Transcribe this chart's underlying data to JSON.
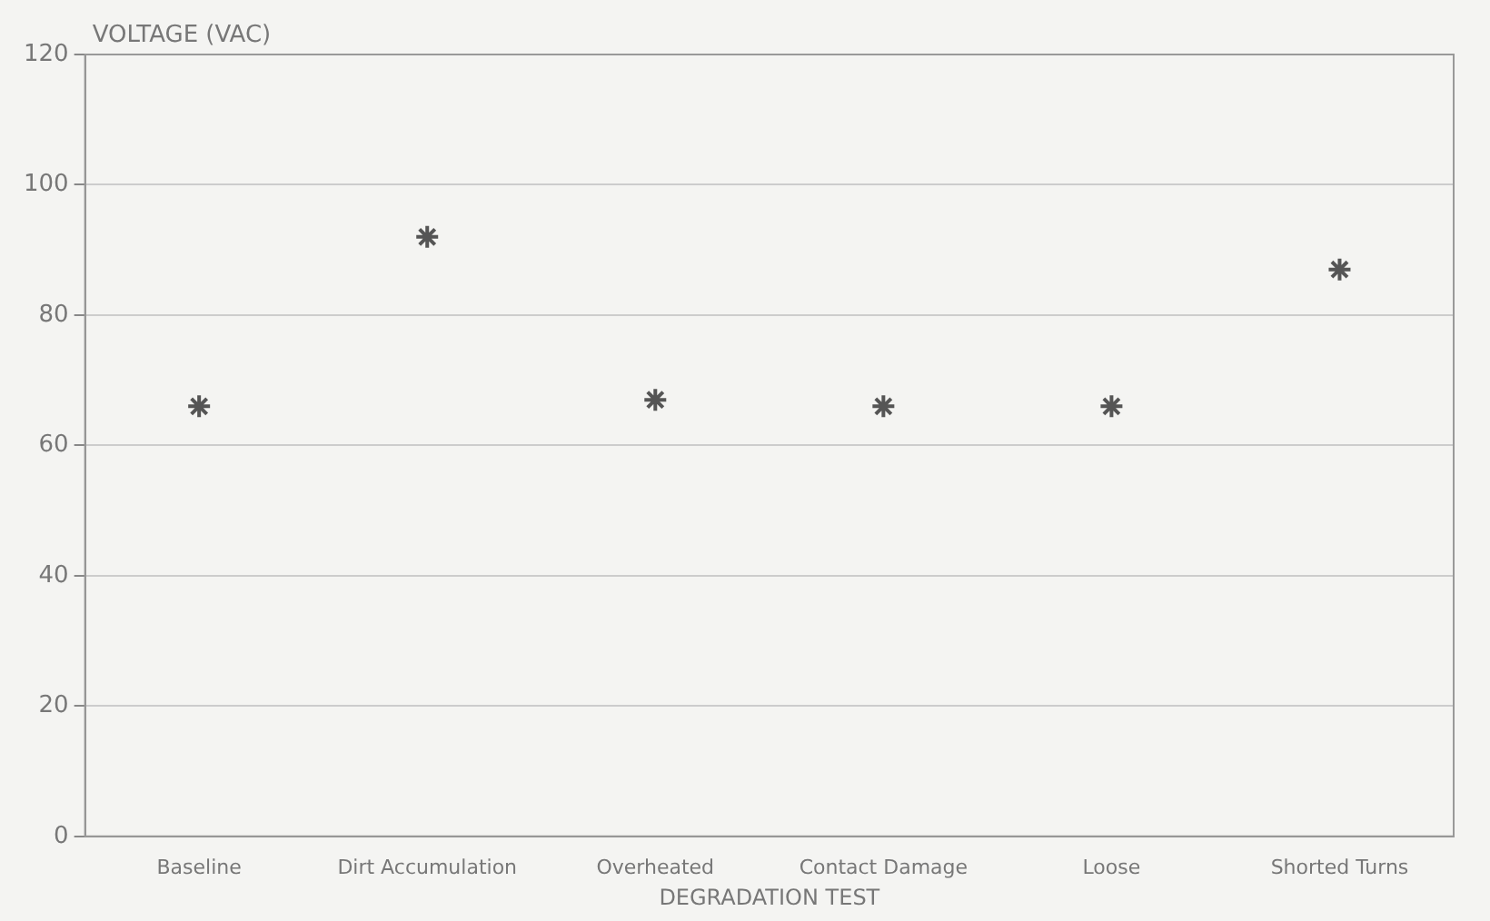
{
  "chart_data": {
    "type": "scatter",
    "ylabel": "VOLTAGE (VAC)",
    "xlabel": "DEGRADATION TEST",
    "categories": [
      "Baseline",
      "Dirt Accumulation",
      "Overheated",
      "Contact Damage",
      "Loose",
      "Shorted Turns"
    ],
    "values": [
      66,
      92,
      67,
      66,
      66,
      87
    ],
    "color": "#555555",
    "ylim": [
      0,
      120
    ],
    "yticks": [
      0,
      20,
      40,
      60,
      80,
      100,
      120
    ],
    "grid": "y",
    "marker": "cross"
  }
}
